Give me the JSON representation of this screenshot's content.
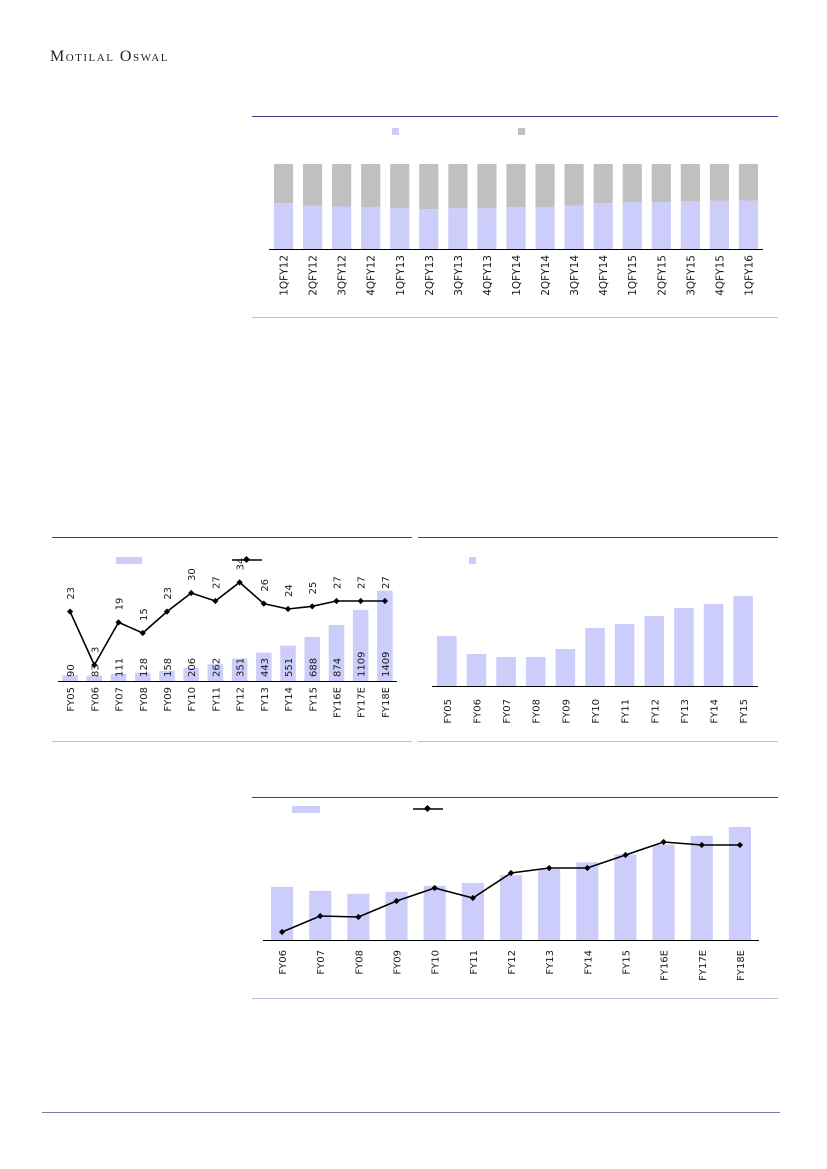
{
  "header": {
    "brand": "Motilal Oswal"
  },
  "colors": {
    "bar": "#cccdfb",
    "bar2": "#c0c0c0",
    "line": "#000000",
    "rule": "#3b3d8c"
  },
  "chart_data": [
    {
      "id": "quarterly-stacked",
      "type": "bar",
      "stacked": true,
      "categories": [
        "1QFY12",
        "2QFY12",
        "3QFY12",
        "4QFY12",
        "1QFY13",
        "2QFY13",
        "3QFY13",
        "4QFY13",
        "1QFY14",
        "2QFY14",
        "3QFY14",
        "4QFY14",
        "1QFY15",
        "2QFY15",
        "3QFY15",
        "4QFY15",
        "1QFY16"
      ],
      "series": [
        {
          "values": [
            54,
            51,
            50,
            49,
            48,
            47,
            48,
            48,
            49,
            49,
            51,
            54,
            55,
            55,
            56,
            57,
            57
          ]
        },
        {
          "values": [
            46,
            49,
            50,
            51,
            52,
            53,
            52,
            52,
            51,
            51,
            49,
            46,
            45,
            45,
            44,
            43,
            43
          ]
        }
      ],
      "ylim": [
        0,
        100
      ],
      "legend": "top"
    },
    {
      "id": "annual-bar-line",
      "type": "bar",
      "categories": [
        "FY05",
        "FY06",
        "FY07",
        "FY08",
        "FY09",
        "FY10",
        "FY11",
        "FY12",
        "FY13",
        "FY14",
        "FY15",
        "FY16E",
        "FY17E",
        "FY18E"
      ],
      "series": [
        {
          "type": "bar",
          "values": [
            90,
            83,
            111,
            128,
            158,
            206,
            262,
            351,
            443,
            551,
            688,
            874,
            1109,
            1409
          ]
        },
        {
          "type": "line",
          "values": [
            23,
            3,
            19,
            15,
            23,
            30,
            27,
            34,
            26,
            24,
            25,
            27,
            27,
            27
          ]
        }
      ],
      "bar_data_labels": [
        "90",
        "83",
        "111",
        "128",
        "158",
        "206",
        "262",
        "351",
        "443",
        "551",
        "688",
        "874",
        "1109",
        "1409"
      ],
      "line_data_labels": [
        "23",
        "3",
        "19",
        "15",
        "23",
        "30",
        "27",
        "34",
        "26",
        "24",
        "25",
        "27",
        "27",
        "27"
      ],
      "ylim_bar": [
        0,
        1450
      ],
      "ylim_line": [
        0,
        42
      ],
      "legend": "top"
    },
    {
      "id": "annual-single-bar",
      "type": "bar",
      "categories": [
        "FY05",
        "FY06",
        "FY07",
        "FY08",
        "FY09",
        "FY10",
        "FY11",
        "FY12",
        "FY13",
        "FY14",
        "FY15"
      ],
      "series": [
        {
          "values": [
            50,
            32,
            29,
            29,
            37,
            58,
            62,
            70,
            78,
            82,
            90
          ]
        }
      ],
      "ylim": [
        0,
        100
      ],
      "legend": "top"
    },
    {
      "id": "annual-bar-line-2",
      "type": "bar",
      "categories": [
        "FY06",
        "FY07",
        "FY08",
        "FY09",
        "FY10",
        "FY11",
        "FY12",
        "FY13",
        "FY14",
        "FY15",
        "FY16E",
        "FY17E",
        "FY18E"
      ],
      "series": [
        {
          "type": "bar",
          "values": [
            54,
            50,
            47,
            49,
            55,
            58,
            66,
            72,
            79,
            87,
            97,
            106,
            115
          ]
        },
        {
          "type": "line",
          "values": [
            4,
            20,
            19,
            35,
            48,
            38,
            63,
            68,
            68,
            81,
            94,
            91,
            91
          ]
        }
      ],
      "ylim": [
        0,
        120
      ],
      "legend": "top"
    }
  ]
}
